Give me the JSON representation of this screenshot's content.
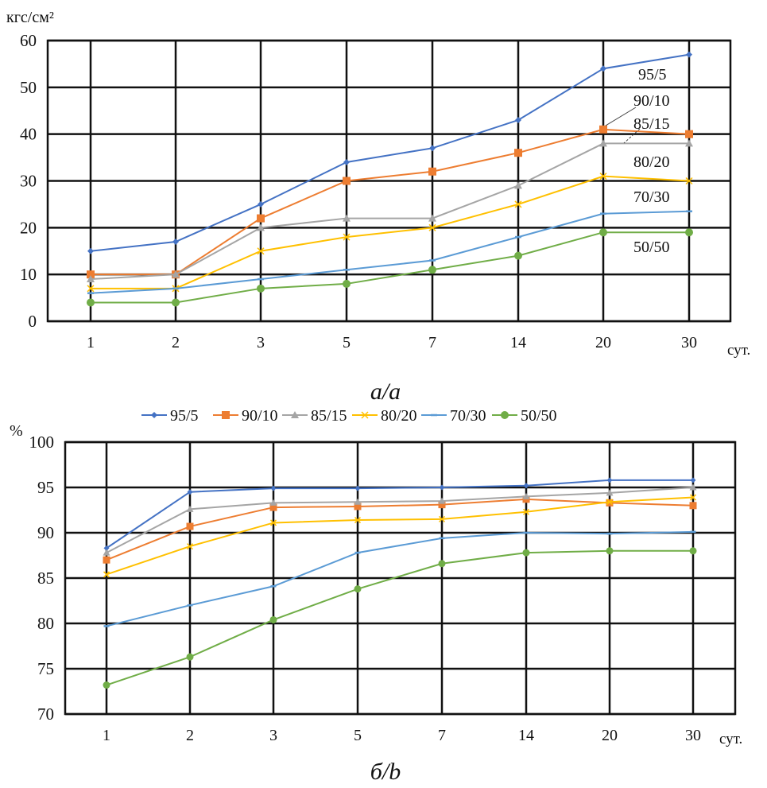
{
  "chart_data": [
    {
      "type": "line",
      "caption": "а/а",
      "ylabel": "кгс/см²",
      "xlabel": "сут.",
      "categories": [
        "1",
        "2",
        "3",
        "5",
        "7",
        "14",
        "20",
        "30"
      ],
      "ylim": [
        0,
        60
      ],
      "yticks": [
        "0",
        "10",
        "20",
        "30",
        "40",
        "50",
        "60"
      ],
      "grid": true,
      "legend": "inline-labels-right",
      "series": [
        {
          "name": "95/5",
          "color": "#4472C4",
          "marker": "diamond",
          "values": [
            15,
            17,
            25,
            34,
            37,
            43,
            54,
            57
          ]
        },
        {
          "name": "90/10",
          "color": "#ED7D31",
          "marker": "square",
          "values": [
            10,
            10,
            22,
            30,
            32,
            36,
            41,
            40
          ]
        },
        {
          "name": "85/15",
          "color": "#A5A5A5",
          "marker": "triangle",
          "values": [
            9,
            10,
            20,
            22,
            22,
            29,
            38,
            38
          ]
        },
        {
          "name": "80/20",
          "color": "#FFC000",
          "marker": "x",
          "values": [
            7,
            7,
            15,
            18,
            20,
            25,
            31,
            30
          ]
        },
        {
          "name": "70/30",
          "color": "#5B9BD5",
          "marker": "dash",
          "values": [
            6,
            7,
            9,
            11,
            13,
            18,
            23,
            23.5
          ]
        },
        {
          "name": "50/50",
          "color": "#70AD47",
          "marker": "circle",
          "values": [
            4,
            4,
            7,
            8,
            11,
            14,
            19,
            19
          ]
        }
      ]
    },
    {
      "type": "line",
      "caption": "б/b",
      "ylabel": "%",
      "xlabel": "сут.",
      "categories": [
        "1",
        "2",
        "3",
        "5",
        "7",
        "14",
        "20",
        "30"
      ],
      "ylim": [
        70,
        100
      ],
      "yticks": [
        "70",
        "75",
        "80",
        "85",
        "90",
        "95",
        "100"
      ],
      "grid": true,
      "legend": "top",
      "series": [
        {
          "name": "95/5",
          "color": "#4472C4",
          "marker": "diamond",
          "values": [
            88.3,
            94.5,
            94.9,
            94.9,
            95.0,
            95.2,
            95.8,
            95.8
          ]
        },
        {
          "name": "90/10",
          "color": "#ED7D31",
          "marker": "square",
          "values": [
            87.0,
            90.7,
            92.8,
            92.9,
            93.1,
            93.7,
            93.3,
            93.0
          ]
        },
        {
          "name": "85/15",
          "color": "#A5A5A5",
          "marker": "triangle",
          "values": [
            87.8,
            92.6,
            93.3,
            93.4,
            93.5,
            94.0,
            94.4,
            95.0
          ]
        },
        {
          "name": "80/20",
          "color": "#FFC000",
          "marker": "x",
          "values": [
            85.4,
            88.5,
            91.1,
            91.4,
            91.5,
            92.3,
            93.4,
            93.9
          ]
        },
        {
          "name": "70/30",
          "color": "#5B9BD5",
          "marker": "dash",
          "values": [
            79.7,
            82.0,
            84.1,
            87.8,
            89.4,
            90.0,
            89.9,
            90.1
          ]
        },
        {
          "name": "50/50",
          "color": "#70AD47",
          "marker": "circle",
          "values": [
            73.2,
            76.3,
            80.4,
            83.8,
            86.6,
            87.8,
            88.0,
            88.0
          ]
        }
      ]
    }
  ]
}
